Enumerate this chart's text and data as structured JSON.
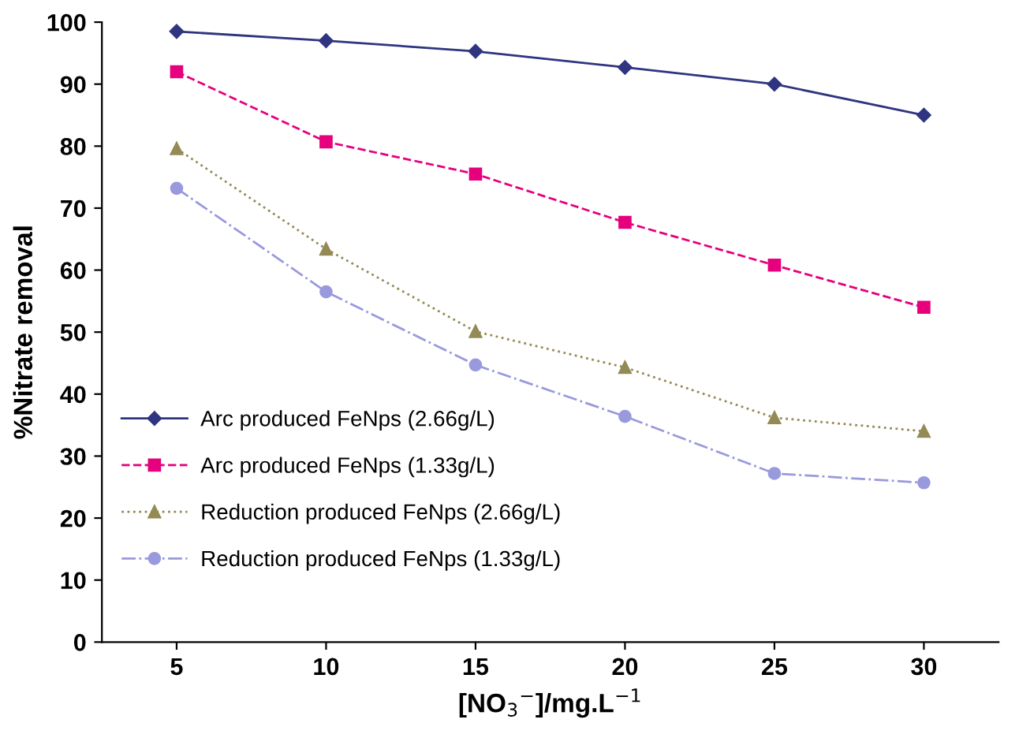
{
  "chart_data": {
    "type": "line",
    "xlabel": "[NO$_{3}$$^{−}$]/mg.L$^{−1}$",
    "ylabel": "%Nitrate removal",
    "categories": [
      "5",
      "10",
      "15",
      "20",
      "25",
      "30"
    ],
    "ylim": [
      0,
      100
    ],
    "yticks": [
      0,
      10,
      20,
      30,
      40,
      50,
      60,
      70,
      80,
      90,
      100
    ],
    "grid": false,
    "legend": "bottom left",
    "series": [
      {
        "name": "Arc produced FeNps (2.66g/L)",
        "color": "#2f3580",
        "marker": "diamond",
        "line_style": "solid",
        "values": [
          98.5,
          97,
          95.3,
          92.7,
          90,
          85
        ]
      },
      {
        "name": "Arc produced FeNps (1.33g/L)",
        "color": "#e6007e",
        "marker": "square",
        "line_style": "dashed",
        "values": [
          92,
          80.7,
          75.5,
          67.7,
          60.8,
          54
        ]
      },
      {
        "name": "Reduction produced FeNps (2.66g/L)",
        "color": "#948a54",
        "marker": "triangle",
        "line_style": "dotted",
        "values": [
          79.6,
          63.4,
          50.1,
          44.3,
          36.2,
          34
        ]
      },
      {
        "name": "Reduction produced FeNps (1.33g/L)",
        "color": "#9999dd",
        "marker": "circle",
        "line_style": "dashdot",
        "values": [
          73.2,
          56.5,
          44.7,
          36.4,
          27.2,
          25.7
        ]
      }
    ]
  }
}
